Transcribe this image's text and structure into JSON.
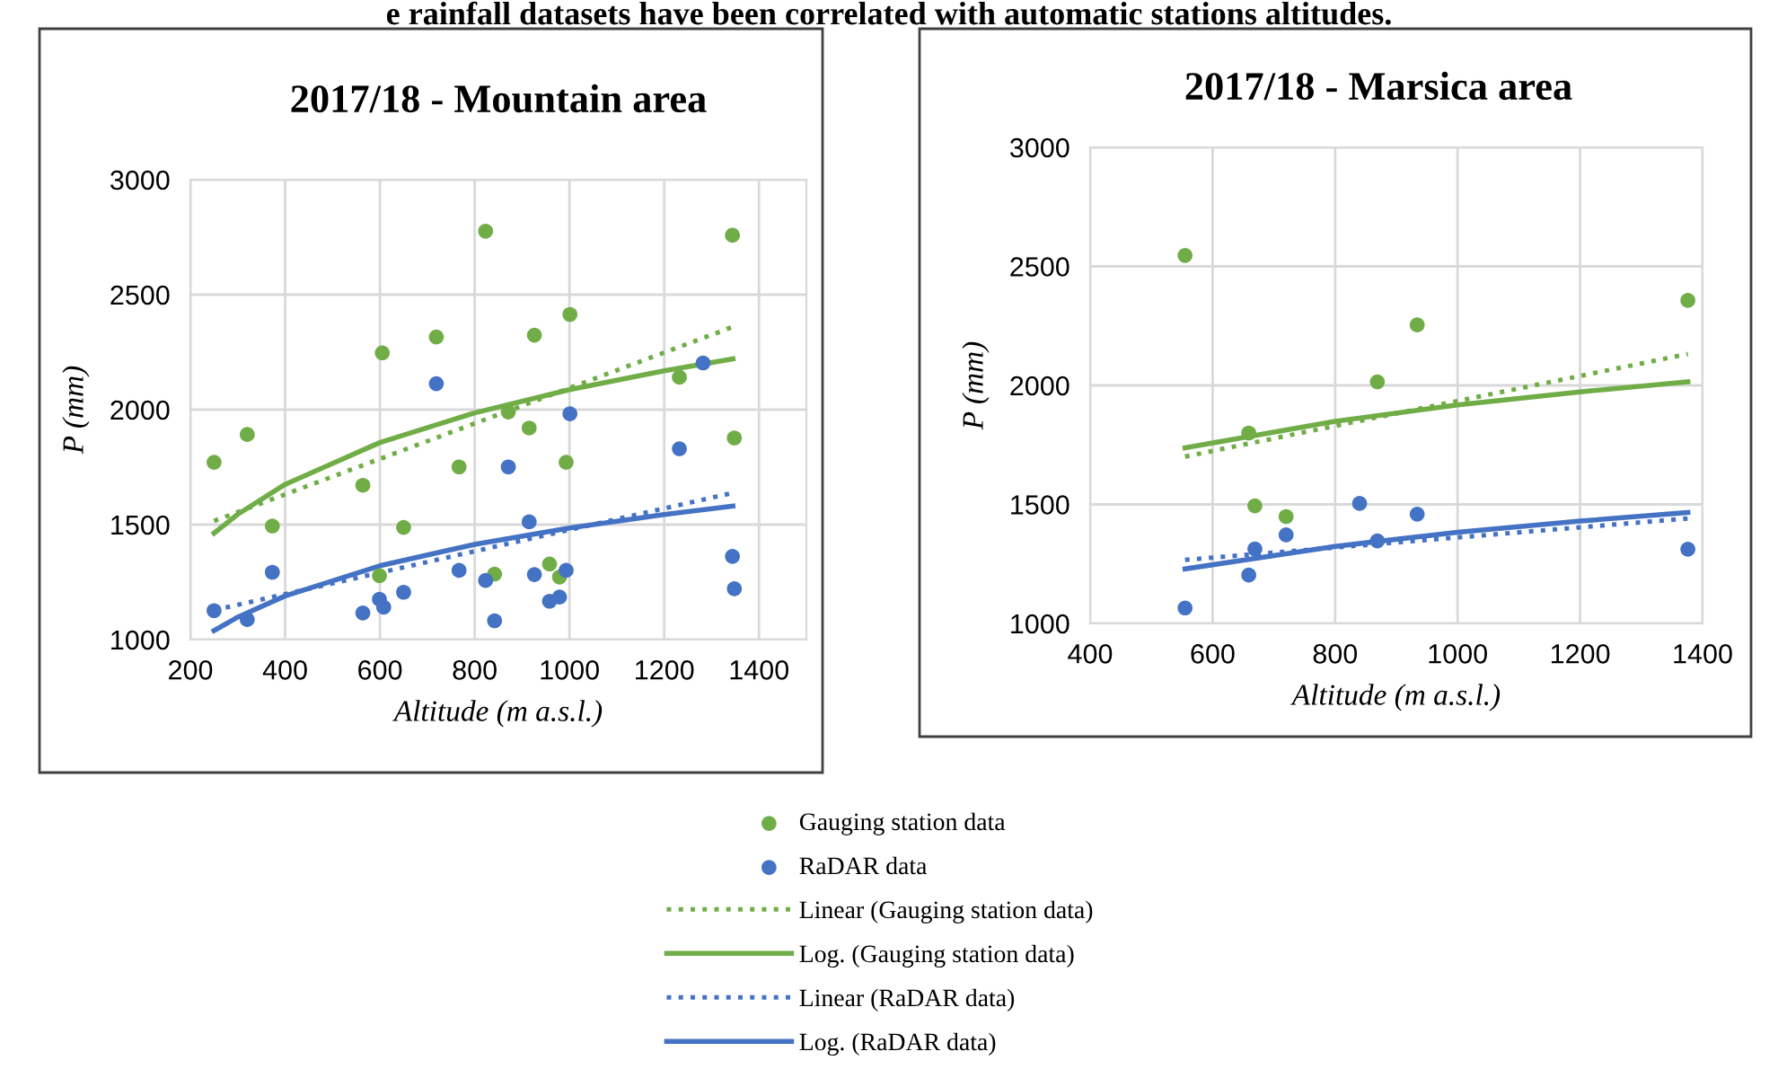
{
  "chart_data": [
    {
      "type": "scatter",
      "title": "2017/18 - Mountain area",
      "xlabel": "Altitude (m a.s.l.)",
      "ylabel": "P (mm)",
      "annotations": [
        "e rainfall datasets have been correlated with automatic stations altitudes."
      ],
      "xlim": [
        200,
        1500
      ],
      "xticks": [
        200,
        400,
        600,
        800,
        1000,
        1200,
        1400
      ],
      "ylim": [
        1000,
        3000
      ],
      "yticks": [
        1000,
        1500,
        2000,
        2500,
        3000
      ],
      "grid": true,
      "legend": "bottom",
      "series": [
        {
          "name": "Gauging station data",
          "marker": "circle",
          "color": "#70ad47",
          "x": [
            250,
            320,
            373,
            564,
            599,
            605,
            650,
            719,
            767,
            823,
            842,
            871,
            915,
            926,
            958,
            979,
            993,
            1001,
            1232,
            1344,
            1348
          ],
          "values": [
            1771,
            1892,
            1494,
            1671,
            1278,
            2247,
            1488,
            2316,
            1751,
            2776,
            1285,
            1990,
            1920,
            2324,
            1329,
            1272,
            1771,
            2414,
            2141,
            2758,
            1877
          ]
        },
        {
          "name": "RaDAR data",
          "marker": "circle",
          "color": "#4472c4",
          "x": [
            250,
            320,
            373,
            564,
            599,
            608,
            650,
            719,
            767,
            823,
            842,
            871,
            915,
            926,
            958,
            979,
            993,
            1001,
            1232,
            1282,
            1344,
            1348
          ],
          "values": [
            1126,
            1087,
            1293,
            1116,
            1175,
            1141,
            1206,
            2113,
            1301,
            1257,
            1082,
            1751,
            1512,
            1283,
            1167,
            1185,
            1301,
            1982,
            1830,
            2203,
            1362,
            1221
          ]
        },
        {
          "name": "Linear (Gauging station data)",
          "type": "line",
          "line_style": "dotted",
          "color": "#70ad47",
          "x": [
            250,
            1345
          ],
          "values": [
            1516,
            2360
          ]
        },
        {
          "name": "Log. (Gauging station data)",
          "type": "line",
          "line_style": "solid",
          "color": "#70ad47",
          "x": [
            250,
            300,
            400,
            600,
            800,
            1000,
            1200,
            1345
          ],
          "values": [
            1463,
            1545,
            1675,
            1857,
            1986,
            2087,
            2169,
            2221
          ]
        },
        {
          "name": "Linear (RaDAR data)",
          "type": "line",
          "line_style": "dotted",
          "color": "#4472c4",
          "x": [
            250,
            1345
          ],
          "values": [
            1128,
            1638
          ]
        },
        {
          "name": "Log. (RaDAR data)",
          "type": "line",
          "line_style": "solid",
          "color": "#4472c4",
          "x": [
            250,
            300,
            400,
            600,
            800,
            1000,
            1200,
            1345
          ],
          "values": [
            1039,
            1098,
            1190,
            1321,
            1414,
            1485,
            1544,
            1581
          ]
        }
      ]
    },
    {
      "type": "scatter",
      "title": "2017/18 - Marsica area",
      "xlabel": "Altitude (m a.s.l.)",
      "ylabel": "P (mm)",
      "xlim": [
        400,
        1400
      ],
      "xticks": [
        400,
        600,
        800,
        1000,
        1200,
        1400
      ],
      "ylim": [
        1000,
        3000
      ],
      "yticks": [
        1000,
        1500,
        2000,
        2500,
        3000
      ],
      "grid": true,
      "series": [
        {
          "marker": "circle",
          "color": "#70ad47",
          "x": [
            555,
            659,
            669,
            720,
            869,
            934,
            1376
          ],
          "values": [
            2546,
            1800,
            1494,
            1449,
            2015,
            2254,
            2357
          ]
        },
        {
          "marker": "circle",
          "color": "#4472c4",
          "x": [
            555,
            659,
            669,
            720,
            840,
            869,
            934,
            1376
          ],
          "values": [
            1065,
            1203,
            1313,
            1372,
            1504,
            1347,
            1459,
            1312
          ]
        },
        {
          "type": "line",
          "line_style": "dotted",
          "color": "#70ad47",
          "x": [
            555,
            1376
          ],
          "values": [
            1701,
            2132
          ]
        },
        {
          "type": "line",
          "line_style": "solid",
          "color": "#70ad47",
          "x": [
            555,
            800,
            1000,
            1200,
            1376
          ],
          "values": [
            1738,
            1849,
            1918,
            1973,
            2015
          ]
        },
        {
          "type": "line",
          "line_style": "dotted",
          "color": "#4472c4",
          "x": [
            555,
            1376
          ],
          "values": [
            1267,
            1441
          ]
        },
        {
          "type": "line",
          "line_style": "solid",
          "color": "#4472c4",
          "x": [
            555,
            800,
            1000,
            1200,
            1376
          ],
          "values": [
            1229,
            1324,
            1383,
            1430,
            1466
          ]
        }
      ]
    }
  ]
}
